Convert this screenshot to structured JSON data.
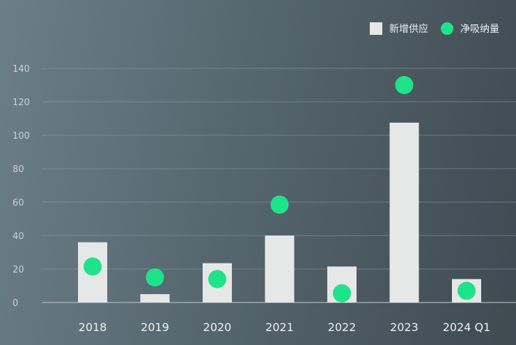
{
  "chart_data": {
    "type": "bar",
    "categories": [
      "2018",
      "2019",
      "2020",
      "2021",
      "2022",
      "2023",
      "2024 Q1"
    ],
    "series": [
      {
        "name": "新增供应",
        "type": "bar",
        "values": [
          36,
          5,
          23.5,
          40,
          21.5,
          107.5,
          14
        ]
      },
      {
        "name": "净吸纳量",
        "type": "scatter",
        "values": [
          21.5,
          15,
          14,
          58.5,
          5.5,
          130,
          7
        ]
      }
    ],
    "yticks": [
      0,
      20,
      40,
      60,
      80,
      100,
      120,
      140
    ],
    "ylim": [
      0,
      140
    ],
    "grid": true,
    "legend_position": "top-right",
    "colors": {
      "bar": "#e6e7e7",
      "dot": "#1ee38a",
      "grid": "#8c9aa1",
      "text": "#eef1f2",
      "tick": "#c9d1d4"
    }
  }
}
